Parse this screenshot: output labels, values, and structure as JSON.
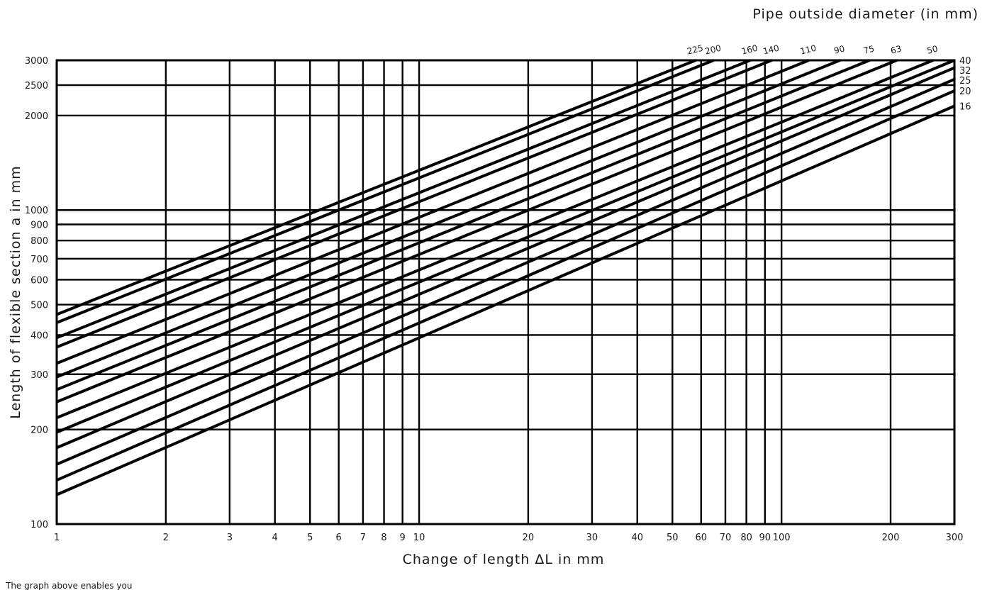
{
  "chart_data": {
    "type": "line",
    "title": "",
    "xlabel": "Change of length ΔL in mm",
    "ylabel": "Length of flexible section a in mm",
    "top_axis_label": "Pipe outside diameter (in mm)",
    "x_scale": "log",
    "y_scale": "log",
    "xlim": [
      1,
      300
    ],
    "ylim": [
      100,
      3000
    ],
    "x_ticks": [
      1,
      2,
      3,
      4,
      5,
      6,
      7,
      8,
      9,
      10,
      20,
      30,
      40,
      50,
      60,
      70,
      80,
      90,
      100,
      200,
      300
    ],
    "y_ticks": [
      100,
      200,
      300,
      400,
      500,
      600,
      700,
      800,
      900,
      1000,
      2000,
      2500,
      3000
    ],
    "grid": true,
    "series": [
      {
        "name": "16",
        "points": [
          [
            1,
            124
          ],
          [
            300,
            2145
          ]
        ]
      },
      {
        "name": "20",
        "points": [
          [
            1,
            138
          ],
          [
            300,
            2398
          ]
        ]
      },
      {
        "name": "25",
        "points": [
          [
            1,
            155
          ],
          [
            300,
            2610
          ]
        ]
      },
      {
        "name": "32",
        "points": [
          [
            1,
            175
          ],
          [
            300,
            2840
          ]
        ]
      },
      {
        "name": "40",
        "points": [
          [
            1,
            196
          ],
          [
            300,
            3000
          ]
        ]
      },
      {
        "name": "50",
        "points": [
          [
            1,
            218
          ],
          [
            262,
            3000
          ]
        ]
      },
      {
        "name": "63",
        "points": [
          [
            1,
            245
          ],
          [
            208,
            3000
          ]
        ]
      },
      {
        "name": "75",
        "points": [
          [
            1,
            268
          ],
          [
            175,
            3000
          ]
        ]
      },
      {
        "name": "90",
        "points": [
          [
            1,
            294
          ],
          [
            145,
            3000
          ]
        ]
      },
      {
        "name": "110",
        "points": [
          [
            1,
            325
          ],
          [
            119,
            3000
          ]
        ]
      },
      {
        "name": "140",
        "points": [
          [
            1,
            366
          ],
          [
            94,
            3000
          ]
        ]
      },
      {
        "name": "160",
        "points": [
          [
            1,
            392
          ],
          [
            82,
            3000
          ]
        ]
      },
      {
        "name": "200",
        "points": [
          [
            1,
            438
          ],
          [
            65,
            3000
          ]
        ]
      },
      {
        "name": "225",
        "points": [
          [
            1,
            465
          ],
          [
            58,
            3000
          ]
        ]
      }
    ]
  },
  "right_labels": [
    "40",
    "32",
    "25",
    "20",
    "16"
  ],
  "top_labels": [
    "225",
    "200",
    "160",
    "140",
    "110",
    "90",
    "75",
    "63",
    "50"
  ],
  "footnote": "The graph above enables you"
}
